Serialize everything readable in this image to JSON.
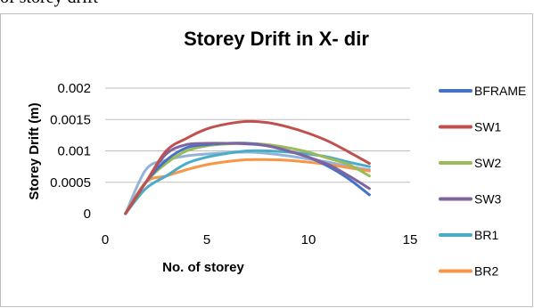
{
  "caption_fragment": "of storey drift",
  "chart_data": {
    "type": "line",
    "title": "Storey Drift in X- dir",
    "xlabel": "No. of storey",
    "ylabel": "Storey Drift (m)",
    "xlim": [
      0,
      15
    ],
    "ylim": [
      0,
      0.002
    ],
    "x_ticks": [
      0,
      5,
      10,
      15
    ],
    "x_tick_labels": [
      "0",
      "5",
      "10",
      "15"
    ],
    "y_ticks": [
      0,
      0.0005,
      0.001,
      0.0015,
      0.002
    ],
    "y_tick_labels": [
      "0",
      "0.0005",
      "0.001",
      "0.0015",
      "0.002"
    ],
    "grid": "horizontal",
    "legend_position": "right",
    "series": [
      {
        "name": "BFRAME",
        "color": "#4472C4",
        "x": [
          1,
          2,
          3,
          4,
          5,
          6,
          7,
          8,
          9,
          10,
          11,
          12,
          13
        ],
        "y": [
          0,
          0.0005,
          0.00085,
          0.00105,
          0.0011,
          0.00112,
          0.00112,
          0.00108,
          0.001,
          0.0009,
          0.00075,
          0.00055,
          0.0003
        ]
      },
      {
        "name": "SW1",
        "color": "#C0504D",
        "x": [
          1,
          2,
          3,
          4,
          5,
          6,
          7,
          8,
          9,
          10,
          11,
          12,
          13
        ],
        "y": [
          0,
          0.0005,
          0.001,
          0.0012,
          0.00135,
          0.00143,
          0.00147,
          0.00145,
          0.00138,
          0.00128,
          0.00115,
          0.00098,
          0.0008
        ]
      },
      {
        "name": "SW2",
        "color": "#9BBB59",
        "x": [
          1,
          2,
          3,
          4,
          5,
          6,
          7,
          8,
          9,
          10,
          11,
          12,
          13
        ],
        "y": [
          0,
          0.0005,
          0.0008,
          0.001,
          0.00108,
          0.00111,
          0.00112,
          0.0011,
          0.00105,
          0.00098,
          0.00088,
          0.00078,
          0.0006
        ]
      },
      {
        "name": "SW3",
        "color": "#8064A2",
        "x": [
          1,
          2,
          3,
          4,
          5,
          6,
          7,
          8,
          9,
          10,
          11,
          12,
          13
        ],
        "y": [
          0,
          0.0005,
          0.00095,
          0.0011,
          0.00112,
          0.00112,
          0.00111,
          0.00108,
          0.001,
          0.0009,
          0.00078,
          0.0006,
          0.0004
        ]
      },
      {
        "name": "BR1",
        "color": "#4BACC6",
        "x": [
          1,
          2,
          3,
          4,
          5,
          6,
          7,
          8,
          9,
          10,
          11,
          12,
          13
        ],
        "y": [
          0,
          0.0004,
          0.0006,
          0.0008,
          0.0009,
          0.00096,
          0.001,
          0.001,
          0.00098,
          0.00095,
          0.0009,
          0.00082,
          0.00075
        ]
      },
      {
        "name": "BR2",
        "color": "#F79646",
        "x": [
          1,
          2,
          3,
          4,
          5,
          6,
          7,
          8,
          9,
          10,
          11,
          12,
          13
        ],
        "y": [
          0,
          0.0005,
          0.0006,
          0.0007,
          0.00078,
          0.00083,
          0.00086,
          0.00086,
          0.00085,
          0.00082,
          0.00078,
          0.00073,
          0.00068
        ]
      },
      {
        "color": "#95B3D7",
        "x": [
          1,
          2,
          3,
          4,
          5,
          6,
          7,
          8,
          9,
          10,
          11,
          12,
          13
        ],
        "y": [
          0,
          0.0007,
          0.00085,
          0.00092,
          0.00095,
          0.00097,
          0.00098,
          0.00096,
          0.00092,
          0.00087,
          0.00082,
          0.00075,
          0.0007
        ]
      }
    ]
  }
}
